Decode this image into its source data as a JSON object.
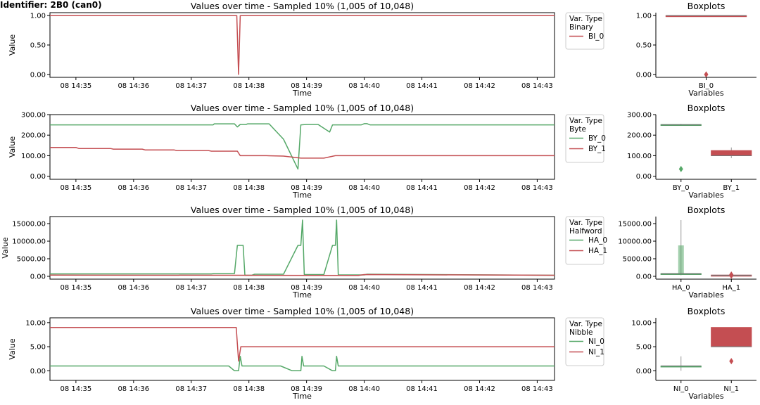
{
  "page_title": "Identifier: 2B0 (can0)",
  "colors": {
    "green": "#55a868",
    "red": "#c44e52",
    "axis": "#000000",
    "legend_border": "#cccccc"
  },
  "chart_data": [
    {
      "type": "line",
      "title": "Values over time - Sampled 10% (1,005 of 10,048)",
      "xlabel": "Time",
      "ylabel": "Value",
      "x_range_minutes": [
        34.55,
        43.3
      ],
      "x_ticks": [
        "08 14:35",
        "08 14:36",
        "08 14:37",
        "08 14:38",
        "08 14:39",
        "08 14:40",
        "08 14:41",
        "08 14:42",
        "08 14:43"
      ],
      "ylim": [
        -0.05,
        1.05
      ],
      "y_ticks": [
        "0.00",
        "0.50",
        "1.00"
      ],
      "y_tick_values": [
        0,
        0.5,
        1
      ],
      "legend": {
        "title_line1": "Var. Type",
        "title_line2": "Binary",
        "placement": "outside-right"
      },
      "series": [
        {
          "name": "BI_0",
          "color": "red",
          "points": [
            [
              34.55,
              1
            ],
            [
              37.79,
              1
            ],
            [
              37.82,
              0
            ],
            [
              37.85,
              1
            ],
            [
              43.3,
              1
            ]
          ]
        }
      ],
      "boxplot": {
        "title": "Boxplots",
        "xlabel": "Variables",
        "ylim": [
          -0.05,
          1.05
        ],
        "y_ticks": [
          "0.00",
          "0.50",
          "1.00"
        ],
        "y_tick_values": [
          0,
          0.5,
          1
        ],
        "categories": [
          "BI_0"
        ],
        "boxes": [
          {
            "name": "BI_0",
            "color": "red",
            "q1": 1,
            "median": 1,
            "q3": 1,
            "whisker_low": 1,
            "whisker_high": 1,
            "outliers": [
              0
            ]
          }
        ]
      }
    },
    {
      "type": "line",
      "title": "Values over time - Sampled 10% (1,005 of 10,048)",
      "xlabel": "Time",
      "ylabel": "Value",
      "x_range_minutes": [
        34.55,
        43.3
      ],
      "x_ticks": [
        "08 14:35",
        "08 14:36",
        "08 14:37",
        "08 14:38",
        "08 14:39",
        "08 14:40",
        "08 14:41",
        "08 14:42",
        "08 14:43"
      ],
      "ylim": [
        -15,
        300
      ],
      "y_ticks": [
        "0.00",
        "100.00",
        "200.00",
        "300.00"
      ],
      "y_tick_values": [
        0,
        100,
        200,
        300
      ],
      "legend": {
        "title_line1": "Var. Type",
        "title_line2": "Byte",
        "placement": "outside-right"
      },
      "series": [
        {
          "name": "BY_0",
          "color": "green",
          "points": [
            [
              34.55,
              250
            ],
            [
              37.38,
              250
            ],
            [
              37.4,
              255
            ],
            [
              37.75,
              255
            ],
            [
              37.8,
              240
            ],
            [
              37.85,
              252
            ],
            [
              37.95,
              252
            ],
            [
              37.98,
              255
            ],
            [
              38.35,
              255
            ],
            [
              38.6,
              180
            ],
            [
              38.85,
              35
            ],
            [
              38.9,
              250
            ],
            [
              39.0,
              252
            ],
            [
              39.2,
              252
            ],
            [
              39.4,
              215
            ],
            [
              39.45,
              250
            ],
            [
              39.95,
              250
            ],
            [
              40.0,
              256
            ],
            [
              40.05,
              256
            ],
            [
              40.1,
              250
            ],
            [
              43.3,
              250
            ]
          ]
        },
        {
          "name": "BY_1",
          "color": "red",
          "points": [
            [
              34.55,
              140
            ],
            [
              35.0,
              140
            ],
            [
              35.05,
              135
            ],
            [
              35.6,
              135
            ],
            [
              35.65,
              132
            ],
            [
              36.15,
              132
            ],
            [
              36.2,
              128
            ],
            [
              36.7,
              128
            ],
            [
              36.75,
              125
            ],
            [
              37.3,
              125
            ],
            [
              37.35,
              122
            ],
            [
              37.8,
              122
            ],
            [
              37.85,
              100
            ],
            [
              38.3,
              100
            ],
            [
              38.6,
              98
            ],
            [
              38.9,
              88
            ],
            [
              39.3,
              88
            ],
            [
              39.5,
              100
            ],
            [
              43.3,
              100
            ]
          ]
        }
      ],
      "boxplot": {
        "title": "Boxplots",
        "xlabel": "Variables",
        "ylim": [
          -15,
          300
        ],
        "y_ticks": [
          "0.00",
          "100.00",
          "200.00",
          "300.00"
        ],
        "y_tick_values": [
          0,
          100,
          200,
          300
        ],
        "categories": [
          "BY_0",
          "BY_1"
        ],
        "boxes": [
          {
            "name": "BY_0",
            "color": "green",
            "q1": 250,
            "median": 250,
            "q3": 252,
            "whisker_low": 250,
            "whisker_high": 255,
            "outliers": [
              35
            ]
          },
          {
            "name": "BY_1",
            "color": "red",
            "q1": 100,
            "median": 100,
            "q3": 125,
            "whisker_low": 88,
            "whisker_high": 140,
            "outliers": []
          }
        ]
      }
    },
    {
      "type": "line",
      "title": "Values over time - Sampled 10% (1,005 of 10,048)",
      "xlabel": "Time",
      "ylabel": "Value",
      "x_range_minutes": [
        34.55,
        43.3
      ],
      "x_ticks": [
        "08 14:35",
        "08 14:36",
        "08 14:37",
        "08 14:38",
        "08 14:39",
        "08 14:40",
        "08 14:41",
        "08 14:42",
        "08 14:43"
      ],
      "ylim": [
        -800,
        17000
      ],
      "y_ticks": [
        "0.00",
        "5000.00",
        "10000.00",
        "15000.00"
      ],
      "y_tick_values": [
        0,
        5000,
        10000,
        15000
      ],
      "legend": {
        "title_line1": "Var. Type",
        "title_line2": "Halfword",
        "placement": "outside-right"
      },
      "series": [
        {
          "name": "HA_0",
          "color": "green",
          "points": [
            [
              34.55,
              700
            ],
            [
              37.35,
              700
            ],
            [
              37.4,
              800
            ],
            [
              37.75,
              800
            ],
            [
              37.8,
              8800
            ],
            [
              37.9,
              8800
            ],
            [
              37.93,
              300
            ],
            [
              38.05,
              300
            ],
            [
              38.1,
              600
            ],
            [
              38.6,
              600
            ],
            [
              38.85,
              8800
            ],
            [
              38.9,
              8800
            ],
            [
              38.93,
              16000
            ],
            [
              38.96,
              500
            ],
            [
              39.3,
              500
            ],
            [
              39.45,
              8800
            ],
            [
              39.5,
              8800
            ],
            [
              39.52,
              16000
            ],
            [
              39.55,
              400
            ],
            [
              40.0,
              400
            ],
            [
              40.05,
              600
            ],
            [
              43.3,
              300
            ]
          ]
        },
        {
          "name": "HA_1",
          "color": "red",
          "points": [
            [
              34.55,
              350
            ],
            [
              37.8,
              300
            ],
            [
              39.9,
              250
            ],
            [
              40.0,
              500
            ],
            [
              43.3,
              300
            ]
          ]
        }
      ],
      "boxplot": {
        "title": "Boxplots",
        "xlabel": "Variables",
        "ylim": [
          -800,
          17000
        ],
        "y_ticks": [
          "0.00",
          "5000.00",
          "10000.00",
          "15000.00"
        ],
        "y_tick_values": [
          0,
          5000,
          10000,
          15000
        ],
        "categories": [
          "HA_0",
          "HA_1"
        ],
        "boxes": [
          {
            "name": "HA_0",
            "color": "green",
            "q1": 500,
            "median": 700,
            "q3": 800,
            "whisker_low": 300,
            "whisker_high": 16000,
            "outliers": [],
            "highlight": [
              800,
              8800
            ]
          },
          {
            "name": "HA_1",
            "color": "red",
            "q1": 250,
            "median": 300,
            "q3": 350,
            "whisker_low": 200,
            "whisker_high": 500,
            "outliers": [
              200,
              500
            ]
          }
        ]
      }
    },
    {
      "type": "line",
      "title": "Values over time - Sampled 10% (1,005 of 10,048)",
      "xlabel": "Time",
      "ylabel": "Value",
      "x_range_minutes": [
        34.55,
        43.3
      ],
      "x_ticks": [
        "08 14:35",
        "08 14:36",
        "08 14:37",
        "08 14:38",
        "08 14:39",
        "08 14:40",
        "08 14:41",
        "08 14:42",
        "08 14:43"
      ],
      "ylim": [
        -2,
        11
      ],
      "y_ticks": [
        "0.00",
        "5.00",
        "10.00"
      ],
      "y_tick_values": [
        0,
        5,
        10
      ],
      "legend": {
        "title_line1": "Var. Type",
        "title_line2": "Nibble",
        "placement": "outside-right"
      },
      "series": [
        {
          "name": "NI_0",
          "color": "green",
          "points": [
            [
              34.55,
              1
            ],
            [
              37.65,
              1
            ],
            [
              37.75,
              0
            ],
            [
              37.82,
              0
            ],
            [
              37.85,
              3
            ],
            [
              37.88,
              1
            ],
            [
              38.55,
              1
            ],
            [
              38.75,
              0
            ],
            [
              38.9,
              0
            ],
            [
              38.92,
              3
            ],
            [
              38.95,
              1
            ],
            [
              39.3,
              1
            ],
            [
              39.45,
              0
            ],
            [
              39.5,
              0
            ],
            [
              39.52,
              3
            ],
            [
              39.55,
              1
            ],
            [
              43.3,
              1
            ]
          ]
        },
        {
          "name": "NI_1",
          "color": "red",
          "points": [
            [
              34.55,
              9
            ],
            [
              37.78,
              9
            ],
            [
              37.82,
              2
            ],
            [
              37.86,
              5
            ],
            [
              43.3,
              5
            ]
          ]
        }
      ],
      "boxplot": {
        "title": "Boxplots",
        "xlabel": "Variables",
        "ylim": [
          -2,
          11
        ],
        "y_ticks": [
          "0.00",
          "5.00",
          "10.00"
        ],
        "y_tick_values": [
          0,
          5,
          10
        ],
        "categories": [
          "NI_0",
          "NI_1"
        ],
        "boxes": [
          {
            "name": "NI_0",
            "color": "green",
            "q1": 1,
            "median": 1,
            "q3": 1,
            "whisker_low": 0,
            "whisker_high": 3,
            "outliers": []
          },
          {
            "name": "NI_1",
            "color": "red",
            "q1": 5,
            "median": 5,
            "q3": 9,
            "whisker_low": 5,
            "whisker_high": 9,
            "outliers": [
              2
            ]
          }
        ]
      }
    }
  ]
}
